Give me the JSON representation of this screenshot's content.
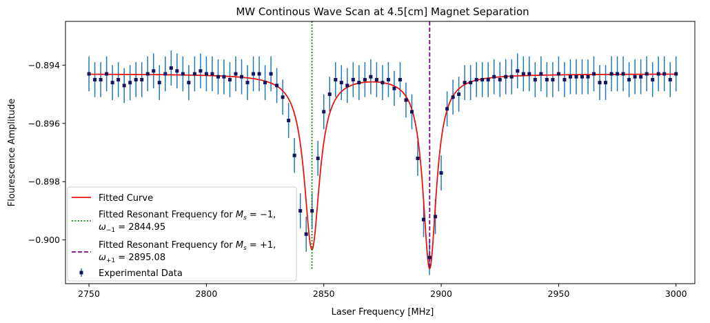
{
  "chart_data": {
    "type": "scatter",
    "title": "MW Continous Wave Scan at 4.5[cm] Magnet Separation",
    "xlabel": "Laser Frequency [MHz]",
    "ylabel": "Flourescence Amplitude",
    "xlim": [
      2740,
      3008
    ],
    "ylim": [
      -0.9015,
      -0.8925
    ],
    "xticks": [
      2750,
      2800,
      2850,
      2900,
      2950,
      3000
    ],
    "yticks": [
      -0.894,
      -0.896,
      -0.898,
      -0.9
    ],
    "ytick_labels": [
      "−0.894",
      "−0.896",
      "−0.898",
      "−0.900"
    ],
    "grid": false,
    "legend_position": "lower-left",
    "colors": {
      "data_marker": "#14145a",
      "error_bar": "#1f77b4",
      "fit": "#e8130f",
      "line_minus": "#008000",
      "line_plus": "#800080"
    },
    "series": [
      {
        "name": "Experimental Data",
        "kind": "errorbar",
        "x": [
          2750,
          2752.5,
          2755,
          2757.5,
          2760,
          2762.5,
          2765,
          2767.5,
          2770,
          2772.5,
          2775,
          2777.5,
          2780,
          2782.5,
          2785,
          2787.5,
          2790,
          2792.5,
          2795,
          2797.5,
          2800,
          2802.5,
          2805,
          2807.5,
          2810,
          2812.5,
          2815,
          2817.5,
          2820,
          2822.5,
          2825,
          2827.5,
          2830,
          2832.5,
          2835,
          2837.5,
          2840,
          2842.5,
          2845,
          2847.5,
          2850,
          2852.5,
          2855,
          2857.5,
          2860,
          2862.5,
          2865,
          2867.5,
          2870,
          2872.5,
          2875,
          2877.5,
          2880,
          2882.5,
          2885,
          2887.5,
          2890,
          2892.5,
          2895,
          2897.5,
          2900,
          2902.5,
          2905,
          2907.5,
          2910,
          2912.5,
          2915,
          2917.5,
          2920,
          2922.5,
          2925,
          2927.5,
          2930,
          2932.5,
          2935,
          2937.5,
          2940,
          2942.5,
          2945,
          2947.5,
          2950,
          2952.5,
          2955,
          2957.5,
          2960,
          2962.5,
          2965,
          2967.5,
          2970,
          2972.5,
          2975,
          2977.5,
          2980,
          2982.5,
          2985,
          2987.5,
          2990,
          2992.5,
          2995,
          2997.5,
          3000
        ],
        "y": [
          -0.8943,
          -0.8945,
          -0.8945,
          -0.8943,
          -0.8946,
          -0.8945,
          -0.8947,
          -0.8946,
          -0.8945,
          -0.8945,
          -0.8943,
          -0.8942,
          -0.8946,
          -0.8943,
          -0.8941,
          -0.8942,
          -0.8943,
          -0.8946,
          -0.8943,
          -0.8942,
          -0.8943,
          -0.8943,
          -0.8944,
          -0.8944,
          -0.8945,
          -0.8943,
          -0.8944,
          -0.8946,
          -0.8943,
          -0.8943,
          -0.8946,
          -0.8943,
          -0.8947,
          -0.8951,
          -0.8959,
          -0.8971,
          -0.899,
          -0.8998,
          -0.899,
          -0.8972,
          -0.8956,
          -0.895,
          -0.8945,
          -0.8946,
          -0.8947,
          -0.8945,
          -0.8946,
          -0.8945,
          -0.8944,
          -0.8945,
          -0.8946,
          -0.8945,
          -0.8948,
          -0.8945,
          -0.8952,
          -0.8956,
          -0.8972,
          -0.8993,
          -0.9006,
          -0.8992,
          -0.8977,
          -0.8955,
          -0.8951,
          -0.895,
          -0.8946,
          -0.8946,
          -0.8945,
          -0.8945,
          -0.8945,
          -0.8944,
          -0.8945,
          -0.8944,
          -0.8944,
          -0.8942,
          -0.8943,
          -0.8943,
          -0.8945,
          -0.8943,
          -0.8945,
          -0.8945,
          -0.8943,
          -0.8945,
          -0.8944,
          -0.8944,
          -0.8944,
          -0.8944,
          -0.8943,
          -0.8946,
          -0.8946,
          -0.8943,
          -0.8943,
          -0.8943,
          -0.8945,
          -0.8944,
          -0.8944,
          -0.8943,
          -0.8945,
          -0.8943,
          -0.8943,
          -0.8945,
          -0.8943
        ],
        "yerr": 0.0006
      },
      {
        "name": "Fitted Curve",
        "kind": "lorentzian_fit",
        "baseline": -0.8943,
        "dips": [
          {
            "center": 2844.95,
            "depth": 0.006,
            "hwhm": 4.0
          },
          {
            "center": 2895.08,
            "depth": 0.00665,
            "hwhm": 3.5
          }
        ]
      },
      {
        "name": "Fitted Resonant Frequency for M_s = −1, ω_−1 = 2844.95",
        "kind": "vline",
        "x": 2844.95,
        "y_range": [
          -0.901,
          -0.8925
        ],
        "style": "dotted"
      },
      {
        "name": "Fitted Resonant Frequency for M_s = +1, ω_+1 = 2895.08",
        "kind": "vline",
        "x": 2895.08,
        "y_range": [
          -0.901,
          -0.8925
        ],
        "style": "dashed"
      }
    ],
    "legend": {
      "fit": "Fitted Curve",
      "minus_line1_prefix": "Fitted Resonant Frequency for ",
      "minus_ms": "M",
      "minus_ms_sub": "s",
      "minus_ms_suffix": " = −1,",
      "minus_omega": "ω",
      "minus_omega_sub": "−1",
      "minus_value": " = 2844.95",
      "plus_line1_prefix": "Fitted Resonant Frequency for ",
      "plus_ms": "M",
      "plus_ms_sub": "s",
      "plus_ms_suffix": " = +1,",
      "plus_omega": "ω",
      "plus_omega_sub": "+1",
      "plus_value": " = 2895.08",
      "data": "Experimental Data"
    }
  }
}
